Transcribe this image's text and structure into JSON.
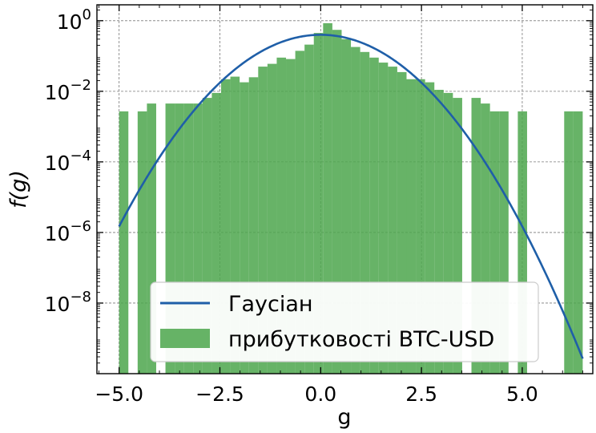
{
  "chart_data": {
    "type": "bar",
    "title": "",
    "xlabel": "g",
    "ylabel": "f(g)",
    "yscale": "log",
    "xlim": [
      -5.55,
      6.75
    ],
    "ylim_exponent": [
      -10.0,
      0.45
    ],
    "grid": true,
    "legend_position": "lower-center",
    "x_ticks": [
      {
        "value": -5.0,
        "label": "−5.0"
      },
      {
        "value": -2.5,
        "label": "−2.5"
      },
      {
        "value": 0.0,
        "label": "0.0"
      },
      {
        "value": 2.5,
        "label": "2.5"
      },
      {
        "value": 5.0,
        "label": "5.0"
      }
    ],
    "y_ticks": [
      {
        "exp": 0,
        "base": "10",
        "sup": "0"
      },
      {
        "exp": -2,
        "base": "10",
        "sup": "−2"
      },
      {
        "exp": -4,
        "base": "10",
        "sup": "−4"
      },
      {
        "exp": -6,
        "base": "10",
        "sup": "−6"
      },
      {
        "exp": -8,
        "base": "10",
        "sup": "−8"
      }
    ],
    "series": [
      {
        "name": "Гаусіан",
        "kind": "line",
        "color": "#1f5fa8",
        "mu": 0.0,
        "sigma": 1.0,
        "x_range": [
          -5.0,
          6.5
        ]
      },
      {
        "name": "прибутковості BTC-USD",
        "kind": "histogram",
        "color": "#4ca64c",
        "bin_edges_start": -5.0,
        "bin_width": 0.23,
        "bins": [
          {
            "x": -4.885,
            "y": 0.0027
          },
          {
            "x": -4.425,
            "y": 0.0027
          },
          {
            "x": -4.195,
            "y": 0.0045
          },
          {
            "x": -3.735,
            "y": 0.0045
          },
          {
            "x": -3.505,
            "y": 0.0045
          },
          {
            "x": -3.275,
            "y": 0.0045
          },
          {
            "x": -3.045,
            "y": 0.0045
          },
          {
            "x": -2.815,
            "y": 0.0065
          },
          {
            "x": -2.585,
            "y": 0.009
          },
          {
            "x": -2.355,
            "y": 0.022
          },
          {
            "x": -2.125,
            "y": 0.026
          },
          {
            "x": -1.895,
            "y": 0.018
          },
          {
            "x": -1.665,
            "y": 0.025
          },
          {
            "x": -1.435,
            "y": 0.05
          },
          {
            "x": -1.205,
            "y": 0.06
          },
          {
            "x": -0.975,
            "y": 0.09
          },
          {
            "x": -0.745,
            "y": 0.082
          },
          {
            "x": -0.515,
            "y": 0.14
          },
          {
            "x": -0.285,
            "y": 0.21
          },
          {
            "x": -0.055,
            "y": 0.45
          },
          {
            "x": 0.175,
            "y": 0.85
          },
          {
            "x": 0.405,
            "y": 0.55
          },
          {
            "x": 0.635,
            "y": 0.3
          },
          {
            "x": 0.865,
            "y": 0.18
          },
          {
            "x": 1.095,
            "y": 0.13
          },
          {
            "x": 1.325,
            "y": 0.09
          },
          {
            "x": 1.555,
            "y": 0.065
          },
          {
            "x": 1.785,
            "y": 0.05
          },
          {
            "x": 2.015,
            "y": 0.035
          },
          {
            "x": 2.245,
            "y": 0.022
          },
          {
            "x": 2.475,
            "y": 0.022
          },
          {
            "x": 2.705,
            "y": 0.018
          },
          {
            "x": 2.935,
            "y": 0.011
          },
          {
            "x": 3.165,
            "y": 0.009
          },
          {
            "x": 3.395,
            "y": 0.0065
          },
          {
            "x": 3.855,
            "y": 0.0065
          },
          {
            "x": 4.085,
            "y": 0.0045
          },
          {
            "x": 4.315,
            "y": 0.0027
          },
          {
            "x": 4.545,
            "y": 0.0027
          },
          {
            "x": 5.005,
            "y": 0.0027
          },
          {
            "x": 6.155,
            "y": 0.0027
          },
          {
            "x": 6.385,
            "y": 0.0027
          }
        ]
      }
    ]
  }
}
